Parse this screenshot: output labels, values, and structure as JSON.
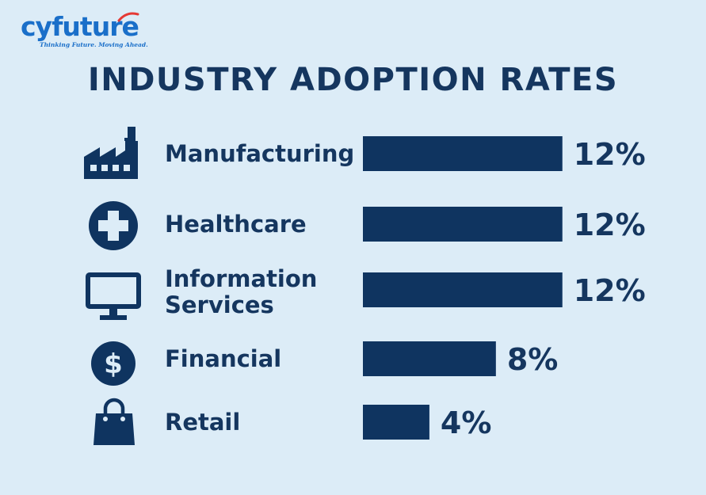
{
  "brand": {
    "name": "cyfuture",
    "tagline": "Thinking Future. Moving Ahead.",
    "color": "#1a6fc9",
    "accent": "#e53935"
  },
  "chart_data": {
    "type": "bar",
    "orientation": "horizontal",
    "title": "INDUSTRY ADOPTION RATES",
    "categories": [
      "Manufacturing",
      "Healthcare",
      "Information Services",
      "Financial",
      "Retail"
    ],
    "category_lines": [
      [
        "Manufacturing"
      ],
      [
        "Healthcare"
      ],
      [
        "Information",
        "Services"
      ],
      [
        "Financial"
      ],
      [
        "Retail"
      ]
    ],
    "values": [
      12,
      12,
      12,
      8,
      4
    ],
    "value_labels": [
      "12%",
      "12%",
      "12%",
      "8%",
      "4%"
    ],
    "icons": [
      "factory-icon",
      "medical-cross-icon",
      "monitor-icon",
      "dollar-icon",
      "shopping-bag-icon"
    ],
    "xlabel": "",
    "ylabel": "",
    "xlim": [
      0,
      14.3
    ],
    "grid": false,
    "legend": "none",
    "bar_color": "#0f3460",
    "text_color": "#15365f"
  }
}
